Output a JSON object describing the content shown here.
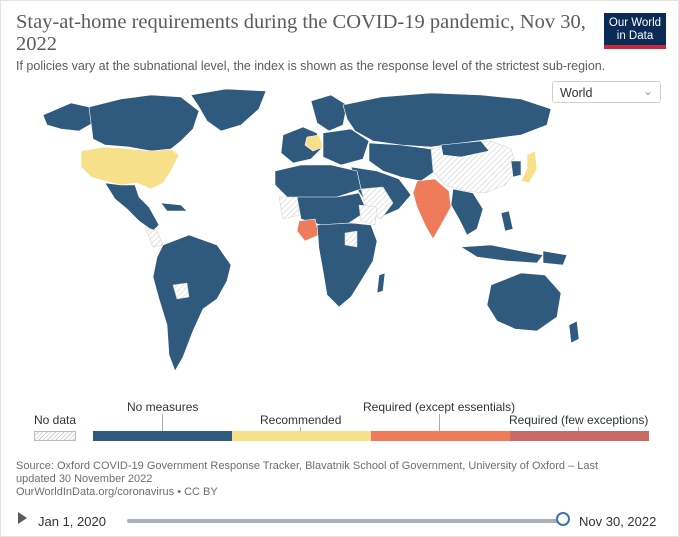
{
  "header": {
    "title": "Stay-at-home requirements during the COVID-19 pandemic, Nov 30, 2022",
    "subtitle": "If policies vary at the subnational level, the index is shown as the response level of the strictest sub-region.",
    "logo_line1": "Our World",
    "logo_line2": "in Data"
  },
  "controls": {
    "region_selected": "World"
  },
  "colors": {
    "no_measures": "#2f5a7d",
    "recommended": "#f7e08a",
    "required_except_essentials": "#ee7b5a",
    "required_few_exceptions": "#c96a66",
    "no_data": "#dcdcdc"
  },
  "map": {
    "countries": [
      {
        "name": "United States",
        "category": "Recommended"
      },
      {
        "name": "Germany",
        "category": "Recommended"
      },
      {
        "name": "Japan",
        "category": "Recommended"
      },
      {
        "name": "India",
        "category": "Required (except essentials)"
      },
      {
        "name": "Nigeria",
        "category": "Required (except essentials)"
      }
    ]
  },
  "legend": {
    "no_data": "No data",
    "categories": [
      "No measures",
      "Recommended",
      "Required (except essentials)",
      "Required (few exceptions)"
    ]
  },
  "source": {
    "line1": "Source: Oxford COVID-19 Government Response Tracker, Blavatnik School of Government, University of Oxford – Last",
    "line2": "updated 30 November 2022",
    "line3": "OurWorldInData.org/coronavirus • CC BY"
  },
  "timeline": {
    "start_label": "Jan 1, 2020",
    "end_label": "Nov 30, 2022",
    "position_fraction": 1.0
  }
}
